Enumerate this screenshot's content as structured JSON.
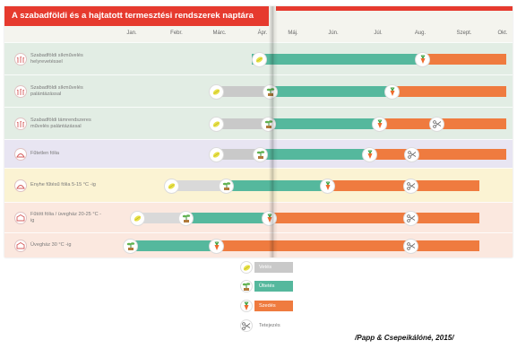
{
  "title": "A szabadföldi és a hajtatott termesztési rendszerek naptára",
  "months": [
    "Jan.",
    "Febr.",
    "Márc.",
    "Ápr.",
    "Máj.",
    "Jún.",
    "Júl.",
    "Aug.",
    "Szept.",
    "Okt."
  ],
  "rows": [
    {
      "label": "Szabadföldi síkművelés helyrevetéssel",
      "bg": "#e2ede4"
    },
    {
      "label": "Szabadföldi síkművelés palántázással",
      "bg": "#e2ede4"
    },
    {
      "label": "Szabadföldi támrendszeres művelés palántázással",
      "bg": "#e2ede4"
    },
    {
      "label": "Fűtetlen fólia",
      "bg": "#e8e5f2"
    },
    {
      "label": "Enyhe fűtésű fólia 5-15 °C -ig",
      "bg": "#fbf3d3"
    },
    {
      "label": "Fűtött fólia / üvegház 20-25 °C -ig",
      "bg": "#fbe8df"
    },
    {
      "label": "Üvegház 30 °C -ig",
      "bg": "#fbe8df"
    }
  ],
  "legend": [
    {
      "label": "Vetés",
      "color": "#c9c9c9",
      "icon": "seed-icon"
    },
    {
      "label": "Ültetés",
      "color": "#55b89d",
      "icon": "seedling-icon"
    },
    {
      "label": "Szedés",
      "color": "#ef7b3f",
      "icon": "tomato-icon"
    },
    {
      "label": "Tetejezés",
      "color": "#ffffff",
      "icon": "scissors-icon"
    }
  ],
  "source": "/Papp & Csepeikálóné, 2015/"
}
